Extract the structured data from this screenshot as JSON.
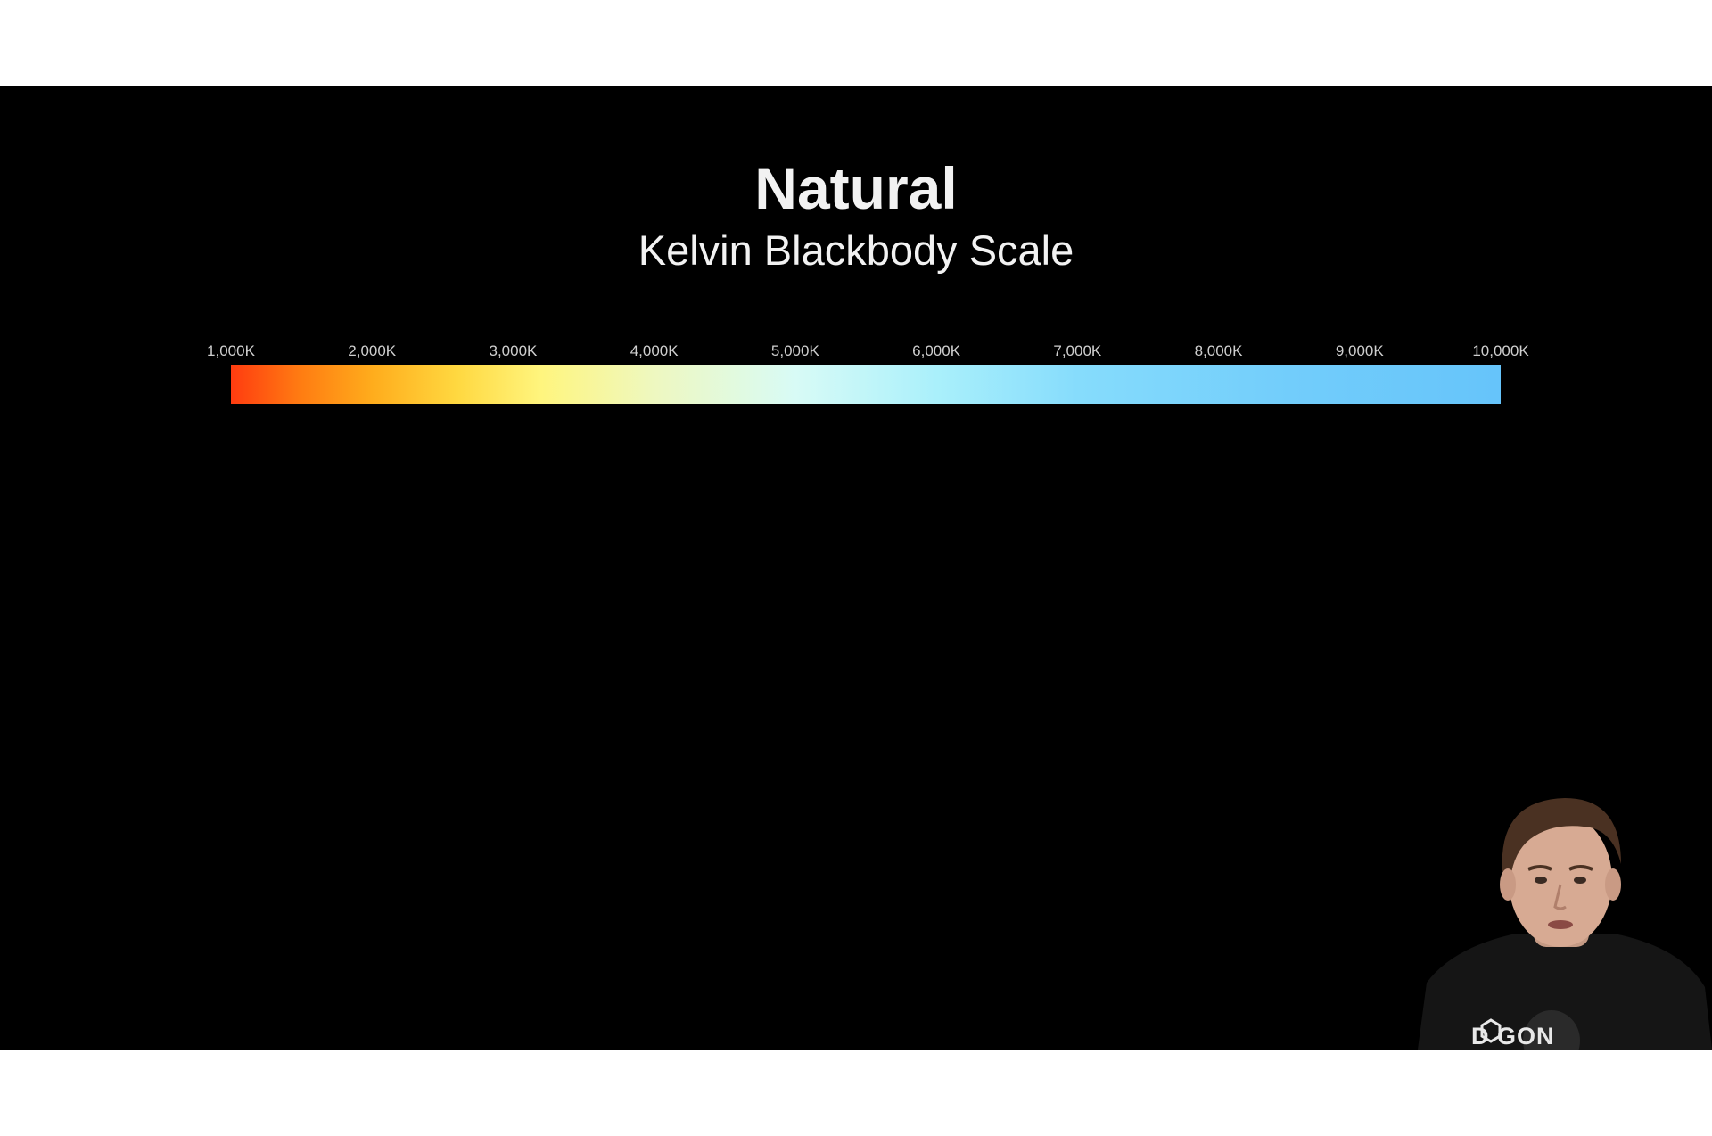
{
  "slide": {
    "title": "Natural",
    "subtitle": "Kelvin Blackbody Scale"
  },
  "kelvin_scale": {
    "labels": [
      "1,000K",
      "2,000K",
      "3,000K",
      "4,000K",
      "5,000K",
      "6,000K",
      "7,000K",
      "8,000K",
      "9,000K",
      "10,000K"
    ],
    "gradient_stops": [
      {
        "kelvin": 1000,
        "color": "#ff3c10"
      },
      {
        "kelvin": 1500,
        "color": "#ff7d12"
      },
      {
        "kelvin": 2000,
        "color": "#ffac1c"
      },
      {
        "kelvin": 2600,
        "color": "#ffd840"
      },
      {
        "kelvin": 3200,
        "color": "#fff57e"
      },
      {
        "kelvin": 4000,
        "color": "#eef8c0"
      },
      {
        "kelvin": 5000,
        "color": "#d8fbf6"
      },
      {
        "kelvin": 6000,
        "color": "#aaf0fb"
      },
      {
        "kelvin": 7000,
        "color": "#86dcfc"
      },
      {
        "kelvin": 8500,
        "color": "#72cdfb"
      },
      {
        "kelvin": 10000,
        "color": "#66c4fa"
      }
    ]
  },
  "presenter": {
    "shirt_text": "D   GON"
  },
  "colors": {
    "letterbox": "#ffffff",
    "slide_background": "#000000",
    "title_text": "#f2f2f2",
    "tick_text": "#cfcfcf"
  }
}
